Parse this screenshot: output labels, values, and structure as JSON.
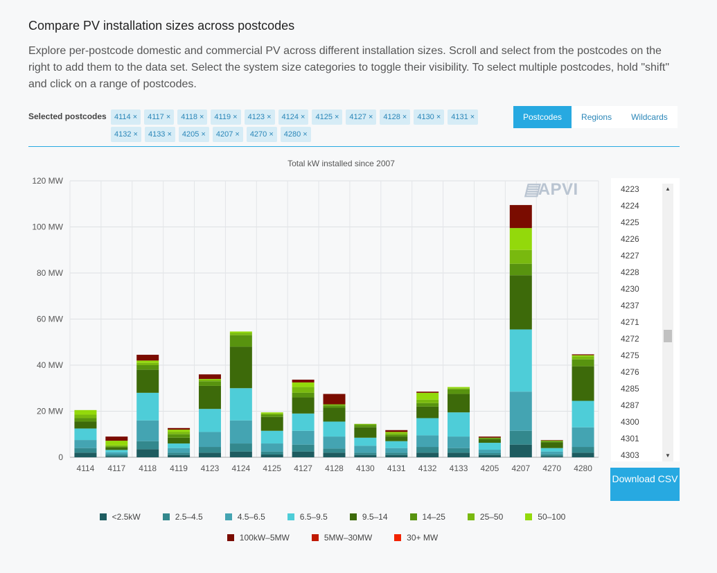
{
  "header": {
    "title": "Compare PV installation sizes across postcodes",
    "description": "Explore per-postcode domestic and commercial PV across different installation sizes. Scroll and select from the postcodes on the right to add them to the data set. Select the system size categories to toggle their visibility. To select multiple postcodes, hold \"shift\" and click on a range of postcodes."
  },
  "selection": {
    "label": "Selected postcodes",
    "chips": [
      "4114 ×",
      "4117 ×",
      "4118 ×",
      "4119 ×",
      "4123 ×",
      "4124 ×",
      "4125 ×",
      "4127 ×",
      "4128 ×",
      "4130 ×",
      "4131 ×",
      "4132 ×",
      "4133 ×",
      "4205 ×",
      "4207 ×",
      "4270 ×",
      "4280 ×"
    ]
  },
  "tabs": [
    {
      "label": "Postcodes",
      "active": true
    },
    {
      "label": "Regions",
      "active": false
    },
    {
      "label": "Wildcards",
      "active": false
    }
  ],
  "watermark": "APVI",
  "postcode_list": [
    "4223",
    "4224",
    "4225",
    "4226",
    "4227",
    "4228",
    "4230",
    "4237",
    "4271",
    "4272",
    "4275",
    "4276",
    "4285",
    "4287",
    "4300",
    "4301",
    "4303"
  ],
  "download_label": "Download CSV",
  "chart_data": {
    "type": "bar",
    "stacked": true,
    "title": "Total kW installed since 2007",
    "ylim": [
      0,
      120
    ],
    "yticks": [
      "0",
      "20 MW",
      "40 MW",
      "60 MW",
      "80 MW",
      "100 MW",
      "120 MW"
    ],
    "grid": true,
    "legend_position": "bottom",
    "categories": [
      "4114",
      "4117",
      "4118",
      "4119",
      "4123",
      "4124",
      "4125",
      "4127",
      "4128",
      "4130",
      "4131",
      "4132",
      "4133",
      "4205",
      "4207",
      "4270",
      "4280"
    ],
    "series": [
      {
        "name": "<2.5kW",
        "color": "#1e5c60",
        "values": [
          2.0,
          0.5,
          3.5,
          1.0,
          2.0,
          2.5,
          1.2,
          2.5,
          2.0,
          1.0,
          1.0,
          2.0,
          2.0,
          1.0,
          5.5,
          0.5,
          2.0
        ]
      },
      {
        "name": "2.5–4.5",
        "color": "#33888d",
        "values": [
          2.0,
          0.7,
          3.5,
          1.0,
          2.5,
          3.5,
          1.3,
          3.0,
          1.8,
          1.0,
          1.0,
          2.5,
          2.0,
          0.8,
          6.0,
          0.8,
          2.5
        ]
      },
      {
        "name": "4.5–6.5",
        "color": "#44a4b2",
        "values": [
          3.5,
          1.0,
          9.0,
          2.0,
          6.5,
          10.0,
          3.5,
          6.0,
          5.2,
          3.0,
          2.0,
          5.0,
          5.0,
          1.5,
          17.0,
          1.2,
          8.5
        ]
      },
      {
        "name": "6.5–9.5",
        "color": "#4ecdd8",
        "values": [
          5.0,
          1.0,
          12.0,
          2.0,
          10.0,
          14.0,
          5.5,
          7.5,
          6.5,
          3.5,
          3.0,
          7.5,
          10.5,
          3.0,
          27.0,
          1.5,
          11.5
        ]
      },
      {
        "name": "9.5–14",
        "color": "#3d6a0a",
        "values": [
          3.0,
          1.0,
          10.0,
          2.5,
          10.0,
          18.0,
          6.0,
          7.0,
          6.0,
          4.5,
          2.0,
          5.0,
          8.0,
          1.5,
          23.5,
          2.5,
          15.0
        ]
      },
      {
        "name": "14–25",
        "color": "#58930f",
        "values": [
          1.5,
          0.5,
          2.0,
          1.5,
          2.0,
          5.0,
          1.0,
          2.0,
          1.0,
          1.0,
          0.8,
          1.5,
          2.0,
          0.5,
          5.0,
          0.5,
          3.0
        ]
      },
      {
        "name": "25–50",
        "color": "#79b90f",
        "values": [
          1.5,
          0.5,
          1.0,
          1.0,
          0.7,
          1.0,
          0.5,
          2.5,
          0.5,
          0.5,
          0.7,
          1.5,
          0.5,
          0.2,
          6.0,
          0.3,
          1.3
        ]
      },
      {
        "name": "50–100",
        "color": "#93d90b",
        "values": [
          2.0,
          2.0,
          1.0,
          1.0,
          0.3,
          0.6,
          0.5,
          2.0,
          0.0,
          0.0,
          0.5,
          3.0,
          0.5,
          0.0,
          9.5,
          0.0,
          0.5
        ]
      },
      {
        "name": "100kW–5MW",
        "color": "#7a0c00",
        "values": [
          0.0,
          1.8,
          2.5,
          0.7,
          2.0,
          0.0,
          0.0,
          1.2,
          4.5,
          0.0,
          0.8,
          0.5,
          0.0,
          0.5,
          10.0,
          0.2,
          0.4
        ]
      },
      {
        "name": "5MW–30MW",
        "color": "#c01a00",
        "values": [
          0,
          0,
          0,
          0,
          0,
          0,
          0,
          0,
          0,
          0,
          0,
          0,
          0,
          0,
          0,
          0,
          0
        ]
      },
      {
        "name": "30+ MW",
        "color": "#f22300",
        "values": [
          0,
          0,
          0,
          0,
          0,
          0,
          0,
          0,
          0,
          0,
          0,
          0,
          0,
          0,
          0,
          0,
          0
        ]
      }
    ]
  }
}
